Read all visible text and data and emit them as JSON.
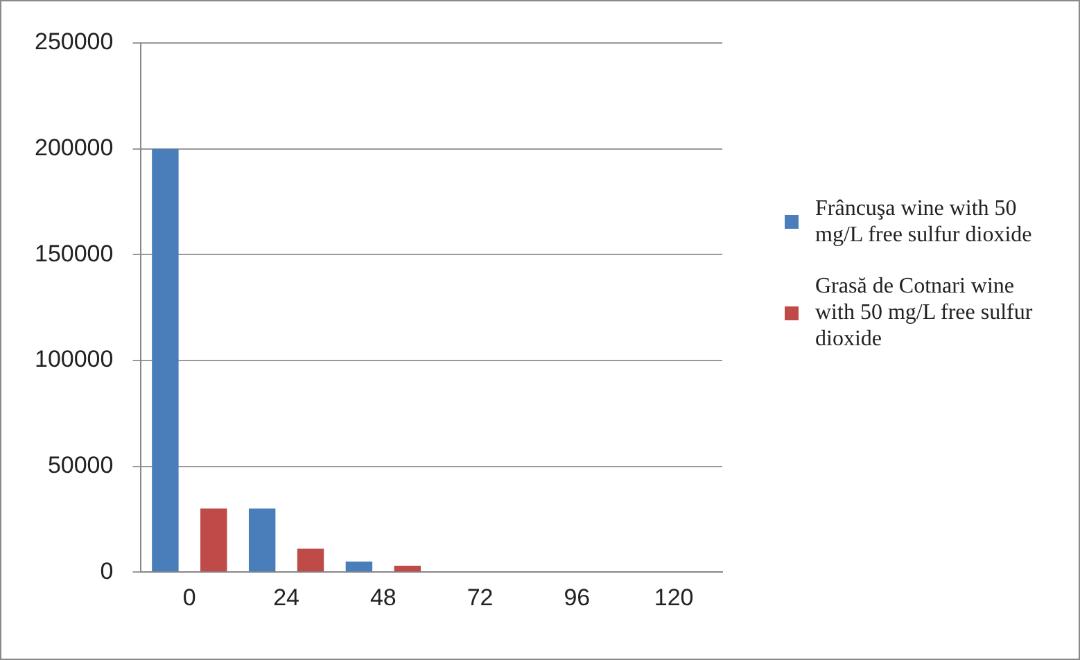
{
  "chart_data": {
    "type": "bar",
    "categories": [
      "0",
      "24",
      "48",
      "72",
      "96",
      "120"
    ],
    "series": [
      {
        "name": "Frâncuşa wine with 50 mg/L free sulfur dioxide",
        "color": "#4a7ebb",
        "values": [
          200000,
          30000,
          5000,
          0,
          0,
          0
        ]
      },
      {
        "name": "Grasă de Cotnari wine with 50 mg/L free sulfur dioxide",
        "color": "#be4b48",
        "values": [
          30000,
          11000,
          3000,
          0,
          0,
          0
        ]
      }
    ],
    "ylim": [
      0,
      250000
    ],
    "yticks": [
      0,
      50000,
      100000,
      150000,
      200000,
      250000
    ],
    "grid": "y",
    "legend": "right"
  }
}
